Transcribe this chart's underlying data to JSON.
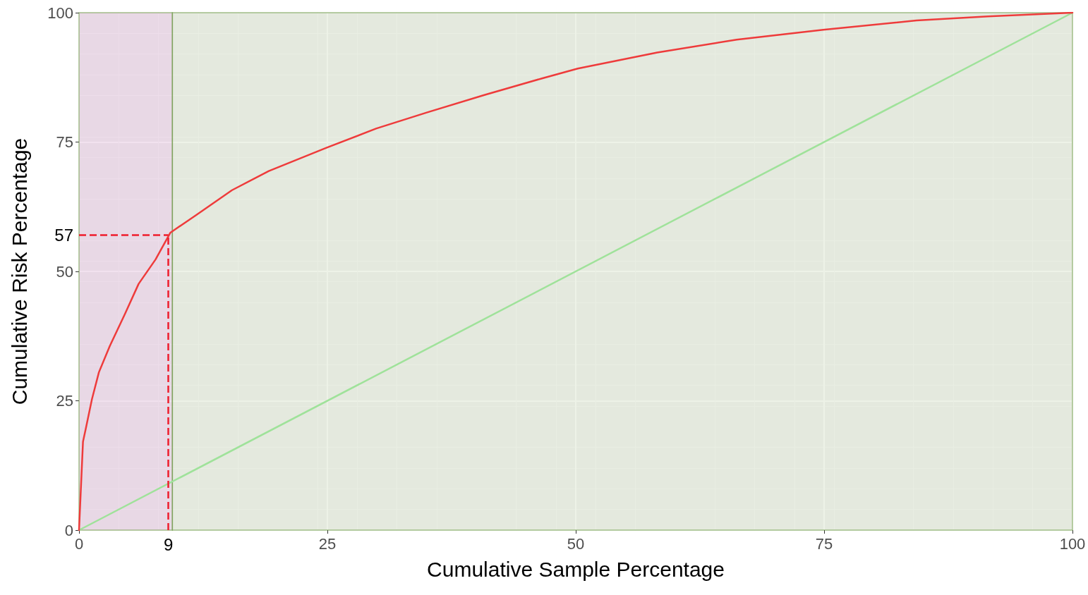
{
  "chart_data": {
    "type": "line",
    "xlabel": "Cumulative Sample Percentage",
    "ylabel": "Cumulative Risk Percentage",
    "xlim": [
      0,
      100
    ],
    "ylim": [
      0,
      100
    ],
    "xticks": [
      0,
      25,
      50,
      75,
      100
    ],
    "yticks": [
      0,
      25,
      50,
      75,
      100
    ],
    "grid": true,
    "marker": "none",
    "line_style": "solid",
    "series": [
      {
        "color": "#ee3b3b",
        "x": [
          0,
          0.4,
          0.7,
          1.3,
          2.0,
          3.1,
          4.6,
          6.0,
          7.7,
          9.2,
          11.8,
          15.4,
          19.1,
          24.9,
          29.9,
          35.0,
          40.8,
          46.6,
          50.2,
          58.2,
          66.2,
          74.9,
          84.3,
          91.5,
          100
        ],
        "values": [
          0,
          17.1,
          19.8,
          25.3,
          30.5,
          35.6,
          41.7,
          47.6,
          52.3,
          57.5,
          60.9,
          65.7,
          69.4,
          73.9,
          77.6,
          80.7,
          84.1,
          87.3,
          89.2,
          92.3,
          94.8,
          96.7,
          98.5,
          99.3,
          100
        ]
      },
      {
        "color": "#9fe29a",
        "x": [
          0,
          100
        ],
        "values": [
          0,
          100
        ]
      }
    ],
    "bands": [
      {
        "axis": "x",
        "from": 0,
        "to": 9.4,
        "color": "#e6c8e0"
      },
      {
        "axis": "x",
        "from": 9.4,
        "to": 100,
        "color": "#dfe8d4"
      }
    ],
    "ref_lines": [
      {
        "axis": "x",
        "value": 9,
        "label": "9",
        "color": "#ee1c2c",
        "line_style": "dashed"
      },
      {
        "axis": "y",
        "value": 57,
        "label": "57",
        "color": "#ee1c2c",
        "line_style": "dashed"
      }
    ]
  }
}
